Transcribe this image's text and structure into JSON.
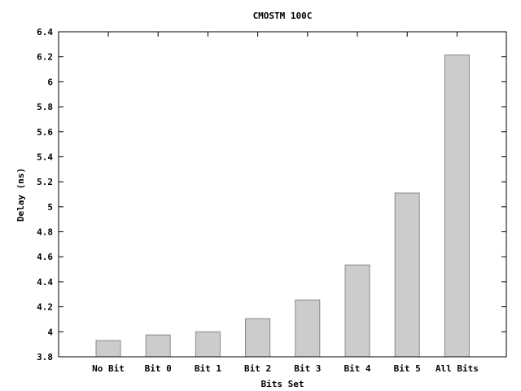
{
  "chart_data": {
    "type": "bar",
    "title": "CMOSTM 100C",
    "xlabel": "Bits Set",
    "ylabel": "Delay (ns)",
    "categories": [
      "No Bit",
      "Bit 0",
      "Bit 1",
      "Bit 2",
      "Bit 3",
      "Bit 4",
      "Bit 5",
      "All Bits"
    ],
    "values": [
      3.93,
      3.975,
      4.0,
      4.105,
      4.255,
      4.535,
      5.11,
      6.215
    ],
    "ylim": [
      3.8,
      6.4
    ],
    "yticks": [
      "3.8",
      "4",
      "4.2",
      "4.4",
      "4.6",
      "4.8",
      "5",
      "5.2",
      "5.4",
      "5.6",
      "5.8",
      "6",
      "6.2",
      "6.4"
    ],
    "grid": false,
    "colors": {
      "bar_fill": "#cccccc",
      "bar_stroke": "#888888"
    }
  }
}
